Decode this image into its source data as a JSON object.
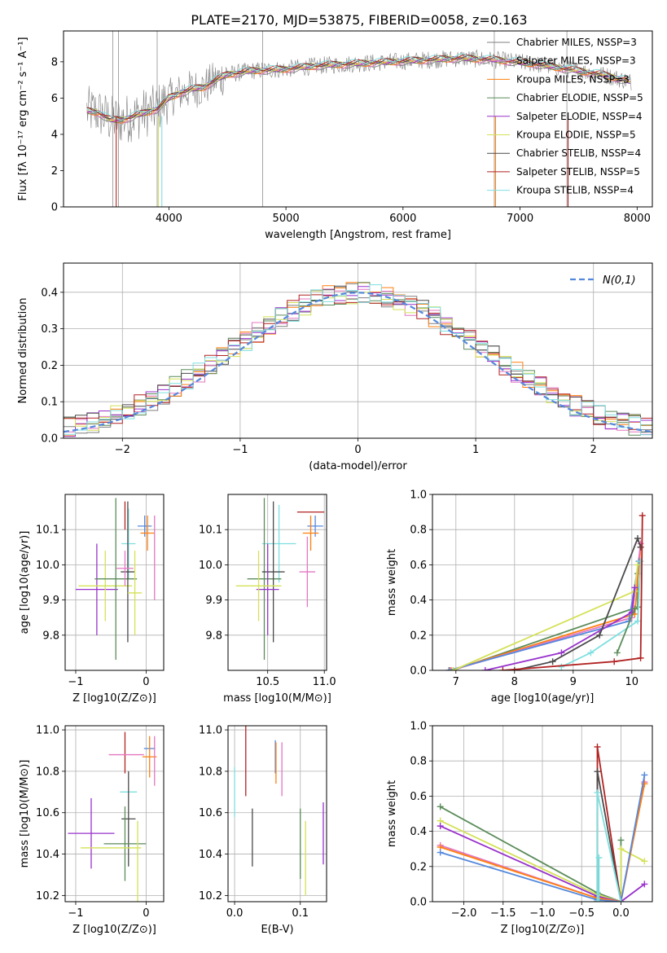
{
  "figure_title": "PLATE=2170, MJD=53875, FIBERID=0058, z=0.163",
  "palette": [
    "#7f7f7f",
    "#e377c2",
    "#ff7f0e",
    "#5b8c5a",
    "#9932cc",
    "#d4e157",
    "#4a4a4a",
    "#b22222",
    "#7fdfdf"
  ],
  "chart_data": [
    {
      "id": "spectrum",
      "type": "line",
      "title": "PLATE=2170, MJD=53875, FIBERID=0058, z=0.163",
      "xlabel": "wavelength [Angstrom, rest frame]",
      "ylabel": "Flux [fλ 10⁻¹⁷ erg cm⁻² s⁻¹ A⁻¹]",
      "xlim": [
        3100,
        8130
      ],
      "ylim": [
        0,
        9.7
      ],
      "xticks": [
        4000,
        5000,
        6000,
        7000,
        8000
      ],
      "yticks": [
        0,
        2,
        4,
        6,
        8
      ],
      "grid": false,
      "legend_position": "upper-right",
      "series": [
        {
          "name": "Chabrier MILES, NSSP=3",
          "color": "#7f7f7f"
        },
        {
          "name": "Salpeter MILES, NSSP=3",
          "color": "#e377c2"
        },
        {
          "name": "Kroupa MILES, NSSP=3",
          "color": "#ff7f0e"
        },
        {
          "name": "Chabrier ELODIE, NSSP=5",
          "color": "#5b8c5a"
        },
        {
          "name": "Salpeter ELODIE, NSSP=4",
          "color": "#9932cc"
        },
        {
          "name": "Kroupa ELODIE, NSSP=5",
          "color": "#d4e157"
        },
        {
          "name": "Chabrier STELIB, NSSP=4",
          "color": "#4a4a4a"
        },
        {
          "name": "Salpeter STELIB, NSSP=5",
          "color": "#b22222"
        },
        {
          "name": "Kroupa STELIB, NSSP=4",
          "color": "#7fdfdf"
        }
      ],
      "model_continuum": {
        "x": [
          3300,
          3400,
          3500,
          3600,
          3700,
          3800,
          3900,
          4000,
          4100,
          4200,
          4300,
          4400,
          4500,
          4700,
          5000,
          5300,
          5600,
          5900,
          6200,
          6500,
          6800,
          7100,
          7400,
          7700,
          7950
        ],
        "y": [
          5.3,
          5.2,
          4.8,
          4.8,
          5.0,
          5.2,
          5.4,
          6.0,
          6.3,
          6.5,
          6.6,
          7.0,
          7.3,
          7.5,
          7.6,
          7.8,
          7.9,
          8.0,
          8.1,
          8.2,
          8.1,
          7.9,
          7.6,
          7.3,
          6.9
        ]
      }
    },
    {
      "id": "residuals",
      "type": "histogram",
      "xlabel": "(data-model)/error",
      "ylabel": "Normed distribution",
      "xlim": [
        -2.5,
        2.5
      ],
      "ylim": [
        0,
        0.48
      ],
      "xticks": [
        -2,
        -1,
        0,
        1,
        2
      ],
      "yticks": [
        0.0,
        0.1,
        0.2,
        0.3,
        0.4
      ],
      "grid": true,
      "legend_position": "upper-right",
      "reference_curve": {
        "name": "N(0,1)",
        "color": "#5588dd",
        "style": "dashed"
      },
      "bin_width": 0.1,
      "bin_start": -2.5,
      "series_colors": [
        "#7f7f7f",
        "#e377c2",
        "#ff7f0e",
        "#5b8c5a",
        "#9932cc",
        "#d4e157",
        "#4a4a4a",
        "#b22222",
        "#7fdfdf"
      ]
    },
    {
      "id": "age_vs_Z",
      "type": "errorbar",
      "xlabel": "Z [log10(Z/Z⊙)]",
      "ylabel": "age  [log10(age/yr)]",
      "xlim": [
        -1.15,
        0.25
      ],
      "ylim": [
        9.7,
        10.2
      ],
      "xticks": [
        -1,
        0
      ],
      "yticks": [
        9.8,
        9.9,
        10.0,
        10.1
      ],
      "grid": true,
      "points": [
        {
          "x": -0.02,
          "xerr": 0.1,
          "y": 10.11,
          "yerr": 0.03,
          "color": "#5588dd"
        },
        {
          "x": -0.3,
          "xerr": 0.0,
          "y": 10.14,
          "yerr": 0.04,
          "color": "#b22222"
        },
        {
          "x": 0.02,
          "xerr": 0.1,
          "y": 10.09,
          "yerr": 0.05,
          "color": "#ff7f0e"
        },
        {
          "x": -0.25,
          "xerr": 0.1,
          "y": 10.06,
          "yerr": 0.1,
          "color": "#7fdfdf"
        },
        {
          "x": 0.12,
          "xerr": 0.0,
          "y": 10.02,
          "yerr": 0.12,
          "color": "#e377c2"
        },
        {
          "x": -0.7,
          "xerr": 0.3,
          "y": 9.93,
          "yerr": 0.13,
          "color": "#9932cc"
        },
        {
          "x": -0.58,
          "xerr": 0.38,
          "y": 9.94,
          "yerr": 0.1,
          "color": "#d4e157"
        },
        {
          "x": -0.43,
          "xerr": 0.3,
          "y": 9.96,
          "yerr": 0.23,
          "color": "#5b8c5a"
        },
        {
          "x": -0.26,
          "xerr": 0.1,
          "y": 9.98,
          "yerr": 0.2,
          "color": "#4a4a4a"
        },
        {
          "x": -0.16,
          "xerr": 0.1,
          "y": 9.92,
          "yerr": 0.12,
          "color": "#d4e157"
        },
        {
          "x": -0.3,
          "xerr": 0.12,
          "y": 9.99,
          "yerr": 0.05,
          "color": "#e377c2"
        }
      ]
    },
    {
      "id": "age_vs_mass",
      "type": "errorbar",
      "xlabel": "mass [log10(M/M⊙)]",
      "ylabel": "",
      "xlim": [
        10.15,
        11.02
      ],
      "ylim": [
        9.7,
        10.2
      ],
      "xticks": [
        10.5,
        11.0
      ],
      "yticks": [
        9.8,
        9.9,
        10.0,
        10.1
      ],
      "grid": true,
      "points": [
        {
          "x": 10.88,
          "xerr": 0.12,
          "y": 10.15,
          "yerr": 0.0,
          "color": "#b22222"
        },
        {
          "x": 10.92,
          "xerr": 0.07,
          "y": 10.11,
          "yerr": 0.03,
          "color": "#5588dd"
        },
        {
          "x": 10.88,
          "xerr": 0.07,
          "y": 10.09,
          "yerr": 0.05,
          "color": "#ff7f0e"
        },
        {
          "x": 10.6,
          "xerr": 0.15,
          "y": 10.06,
          "yerr": 0.11,
          "color": "#7fdfdf"
        },
        {
          "x": 10.85,
          "xerr": 0.07,
          "y": 9.98,
          "yerr": 0.1,
          "color": "#e377c2"
        },
        {
          "x": 10.47,
          "xerr": 0.15,
          "y": 9.96,
          "yerr": 0.23,
          "color": "#5b8c5a"
        },
        {
          "x": 10.55,
          "xerr": 0.1,
          "y": 9.98,
          "yerr": 0.2,
          "color": "#4a4a4a"
        },
        {
          "x": 10.5,
          "xerr": 0.1,
          "y": 9.93,
          "yerr": 0.13,
          "color": "#9932cc"
        },
        {
          "x": 10.42,
          "xerr": 0.2,
          "y": 9.94,
          "yerr": 0.1,
          "color": "#d4e157"
        }
      ]
    },
    {
      "id": "weight_vs_age",
      "type": "line",
      "xlabel": "age  [log10(age/yr)]",
      "ylabel": "mass weight",
      "xlim": [
        6.6,
        10.35
      ],
      "ylim": [
        0,
        1.0
      ],
      "xticks": [
        7,
        8,
        9,
        10
      ],
      "yticks": [
        0.0,
        0.2,
        0.4,
        0.6,
        0.8,
        1.0
      ],
      "grid": true,
      "series": [
        {
          "color": "#5b8c5a",
          "x": [
            6.95,
            10.1,
            10.1
          ],
          "y": [
            0.0,
            0.36,
            0.55
          ]
        },
        {
          "color": "#ff7f0e",
          "x": [
            6.9,
            10.05,
            10.15
          ],
          "y": [
            0.0,
            0.32,
            0.7
          ]
        },
        {
          "color": "#e377c2",
          "x": [
            6.92,
            10.0,
            10.15
          ],
          "y": [
            0.0,
            0.3,
            0.72
          ]
        },
        {
          "color": "#5588dd",
          "x": [
            6.88,
            9.95,
            10.12
          ],
          "y": [
            0.0,
            0.28,
            0.62
          ]
        },
        {
          "color": "#d4e157",
          "x": [
            6.95,
            10.05,
            10.1
          ],
          "y": [
            0.0,
            0.45,
            0.6
          ]
        },
        {
          "color": "#9932cc",
          "x": [
            7.5,
            8.8,
            10.0,
            10.05
          ],
          "y": [
            0.0,
            0.1,
            0.33,
            0.47
          ]
        },
        {
          "color": "#4a4a4a",
          "x": [
            8.0,
            8.65,
            9.45,
            10.1,
            10.15
          ],
          "y": [
            0.0,
            0.05,
            0.2,
            0.75,
            0.7
          ]
        },
        {
          "color": "#7fdfdf",
          "x": [
            8.8,
            9.3,
            10.1,
            10.15
          ],
          "y": [
            0.02,
            0.1,
            0.28,
            0.62
          ]
        },
        {
          "color": "#b22222",
          "x": [
            7.8,
            9.7,
            10.15,
            10.18
          ],
          "y": [
            0.0,
            0.05,
            0.07,
            0.88
          ]
        },
        {
          "color": "#5b8c5a",
          "x": [
            9.75,
            10.05
          ],
          "y": [
            0.1,
            0.35
          ]
        }
      ]
    },
    {
      "id": "mass_vs_Z",
      "type": "errorbar",
      "xlabel": "Z [log10(Z/Z⊙)]",
      "ylabel": "mass [log10(M/M⊙)]",
      "xlim": [
        -1.15,
        0.25
      ],
      "ylim": [
        10.17,
        11.02
      ],
      "xticks": [
        -1,
        0
      ],
      "yticks": [
        10.2,
        10.4,
        10.6,
        10.8,
        11.0
      ],
      "grid": true,
      "points": [
        {
          "x": 0.05,
          "xerr": 0.08,
          "y": 10.91,
          "yerr": 0.0,
          "color": "#5588dd"
        },
        {
          "x": -0.3,
          "xerr": 0.0,
          "y": 10.89,
          "yerr": 0.1,
          "color": "#b22222"
        },
        {
          "x": 0.05,
          "xerr": 0.1,
          "y": 10.87,
          "yerr": 0.1,
          "color": "#ff7f0e"
        },
        {
          "x": -0.28,
          "xerr": 0.25,
          "y": 10.88,
          "yerr": 0.0,
          "color": "#e377c2"
        },
        {
          "x": 0.12,
          "xerr": 0.0,
          "y": 10.85,
          "yerr": 0.12,
          "color": "#e377c2"
        },
        {
          "x": -0.25,
          "xerr": 0.12,
          "y": 10.7,
          "yerr": 0.0,
          "color": "#7fdfdf"
        },
        {
          "x": -0.78,
          "xerr": 0.33,
          "y": 10.5,
          "yerr": 0.17,
          "color": "#9932cc"
        },
        {
          "x": -0.25,
          "xerr": 0.1,
          "y": 10.57,
          "yerr": 0.23,
          "color": "#4a4a4a"
        },
        {
          "x": -0.3,
          "xerr": 0.3,
          "y": 10.45,
          "yerr": 0.18,
          "color": "#5b8c5a"
        },
        {
          "x": -0.5,
          "xerr": 0.43,
          "y": 10.43,
          "yerr": 0.0,
          "color": "#d4e157"
        },
        {
          "x": -0.12,
          "xerr": 0.0,
          "y": 10.36,
          "yerr": 0.2,
          "color": "#d4e157"
        }
      ]
    },
    {
      "id": "mass_vs_EBV",
      "type": "errorbar",
      "xlabel": "E(B-V)",
      "ylabel": "",
      "xlim": [
        -0.01,
        0.14
      ],
      "ylim": [
        10.17,
        11.02
      ],
      "xticks": [
        0.0,
        0.1
      ],
      "yticks": [
        10.2,
        10.4,
        10.6,
        10.8,
        11.0
      ],
      "grid": true,
      "points": [
        {
          "x": 0.017,
          "xerr": 0.0,
          "y": 10.85,
          "yerr": 0.17,
          "color": "#b22222"
        },
        {
          "x": 0.062,
          "xerr": 0.0,
          "y": 10.87,
          "yerr": 0.08,
          "color": "#5588dd"
        },
        {
          "x": 0.063,
          "xerr": 0.0,
          "y": 10.84,
          "yerr": 0.1,
          "color": "#ff7f0e"
        },
        {
          "x": 0.072,
          "xerr": 0.0,
          "y": 10.81,
          "yerr": 0.13,
          "color": "#e377c2"
        },
        {
          "x": 0.0,
          "xerr": 0.0,
          "y": 10.7,
          "yerr": 0.12,
          "color": "#7fdfdf"
        },
        {
          "x": 0.027,
          "xerr": 0.0,
          "y": 10.48,
          "yerr": 0.14,
          "color": "#4a4a4a"
        },
        {
          "x": 0.1,
          "xerr": 0.0,
          "y": 10.45,
          "yerr": 0.17,
          "color": "#5b8c5a"
        },
        {
          "x": 0.108,
          "xerr": 0.0,
          "y": 10.38,
          "yerr": 0.18,
          "color": "#d4e157"
        },
        {
          "x": 0.135,
          "xerr": 0.0,
          "y": 10.5,
          "yerr": 0.15,
          "color": "#9932cc"
        }
      ]
    },
    {
      "id": "weight_vs_Z",
      "type": "line",
      "xlabel": "Z [log10(Z/Z⊙)]",
      "ylabel": "mass weight",
      "xlim": [
        -2.4,
        0.4
      ],
      "ylim": [
        0,
        1.0
      ],
      "xticks": [
        -2.0,
        -1.5,
        -1.0,
        -0.5,
        0.0
      ],
      "yticks": [
        0.0,
        0.2,
        0.4,
        0.6,
        0.8,
        1.0
      ],
      "grid": true,
      "series": [
        {
          "color": "#5b8c5a",
          "x": [
            -2.3,
            -0.3,
            0.0,
            0.0
          ],
          "y": [
            0.54,
            0.05,
            0.0,
            0.35
          ]
        },
        {
          "color": "#d4e157",
          "x": [
            -2.3,
            -0.3,
            0.0,
            0.0,
            0.3
          ],
          "y": [
            0.46,
            0.04,
            0.0,
            0.3,
            0.23
          ]
        },
        {
          "color": "#9932cc",
          "x": [
            -2.3,
            -0.3,
            0.0,
            0.3
          ],
          "y": [
            0.43,
            0.03,
            0.0,
            0.1
          ]
        },
        {
          "color": "#e377c2",
          "x": [
            -2.3,
            -0.3,
            0.0,
            0.3
          ],
          "y": [
            0.32,
            0.02,
            0.0,
            0.68
          ]
        },
        {
          "color": "#ff7f0e",
          "x": [
            -2.3,
            -0.3,
            0.0,
            0.3
          ],
          "y": [
            0.31,
            0.02,
            0.0,
            0.67
          ]
        },
        {
          "color": "#5588dd",
          "x": [
            -2.3,
            -0.3,
            0.0,
            0.3
          ],
          "y": [
            0.28,
            0.01,
            0.0,
            0.72
          ]
        },
        {
          "color": "#b22222",
          "x": [
            -0.3,
            -0.3,
            0.0
          ],
          "y": [
            0.0,
            0.88,
            0.0
          ]
        },
        {
          "color": "#4a4a4a",
          "x": [
            -0.3,
            -0.3,
            0.0
          ],
          "y": [
            0.0,
            0.74,
            0.0
          ]
        },
        {
          "color": "#7fdfdf",
          "x": [
            -0.3,
            -0.3,
            0.0
          ],
          "y": [
            0.0,
            0.62,
            0.0
          ]
        },
        {
          "color": "#7fdfdf",
          "x": [
            -0.28,
            -0.28
          ],
          "y": [
            0.0,
            0.25
          ]
        }
      ]
    }
  ]
}
